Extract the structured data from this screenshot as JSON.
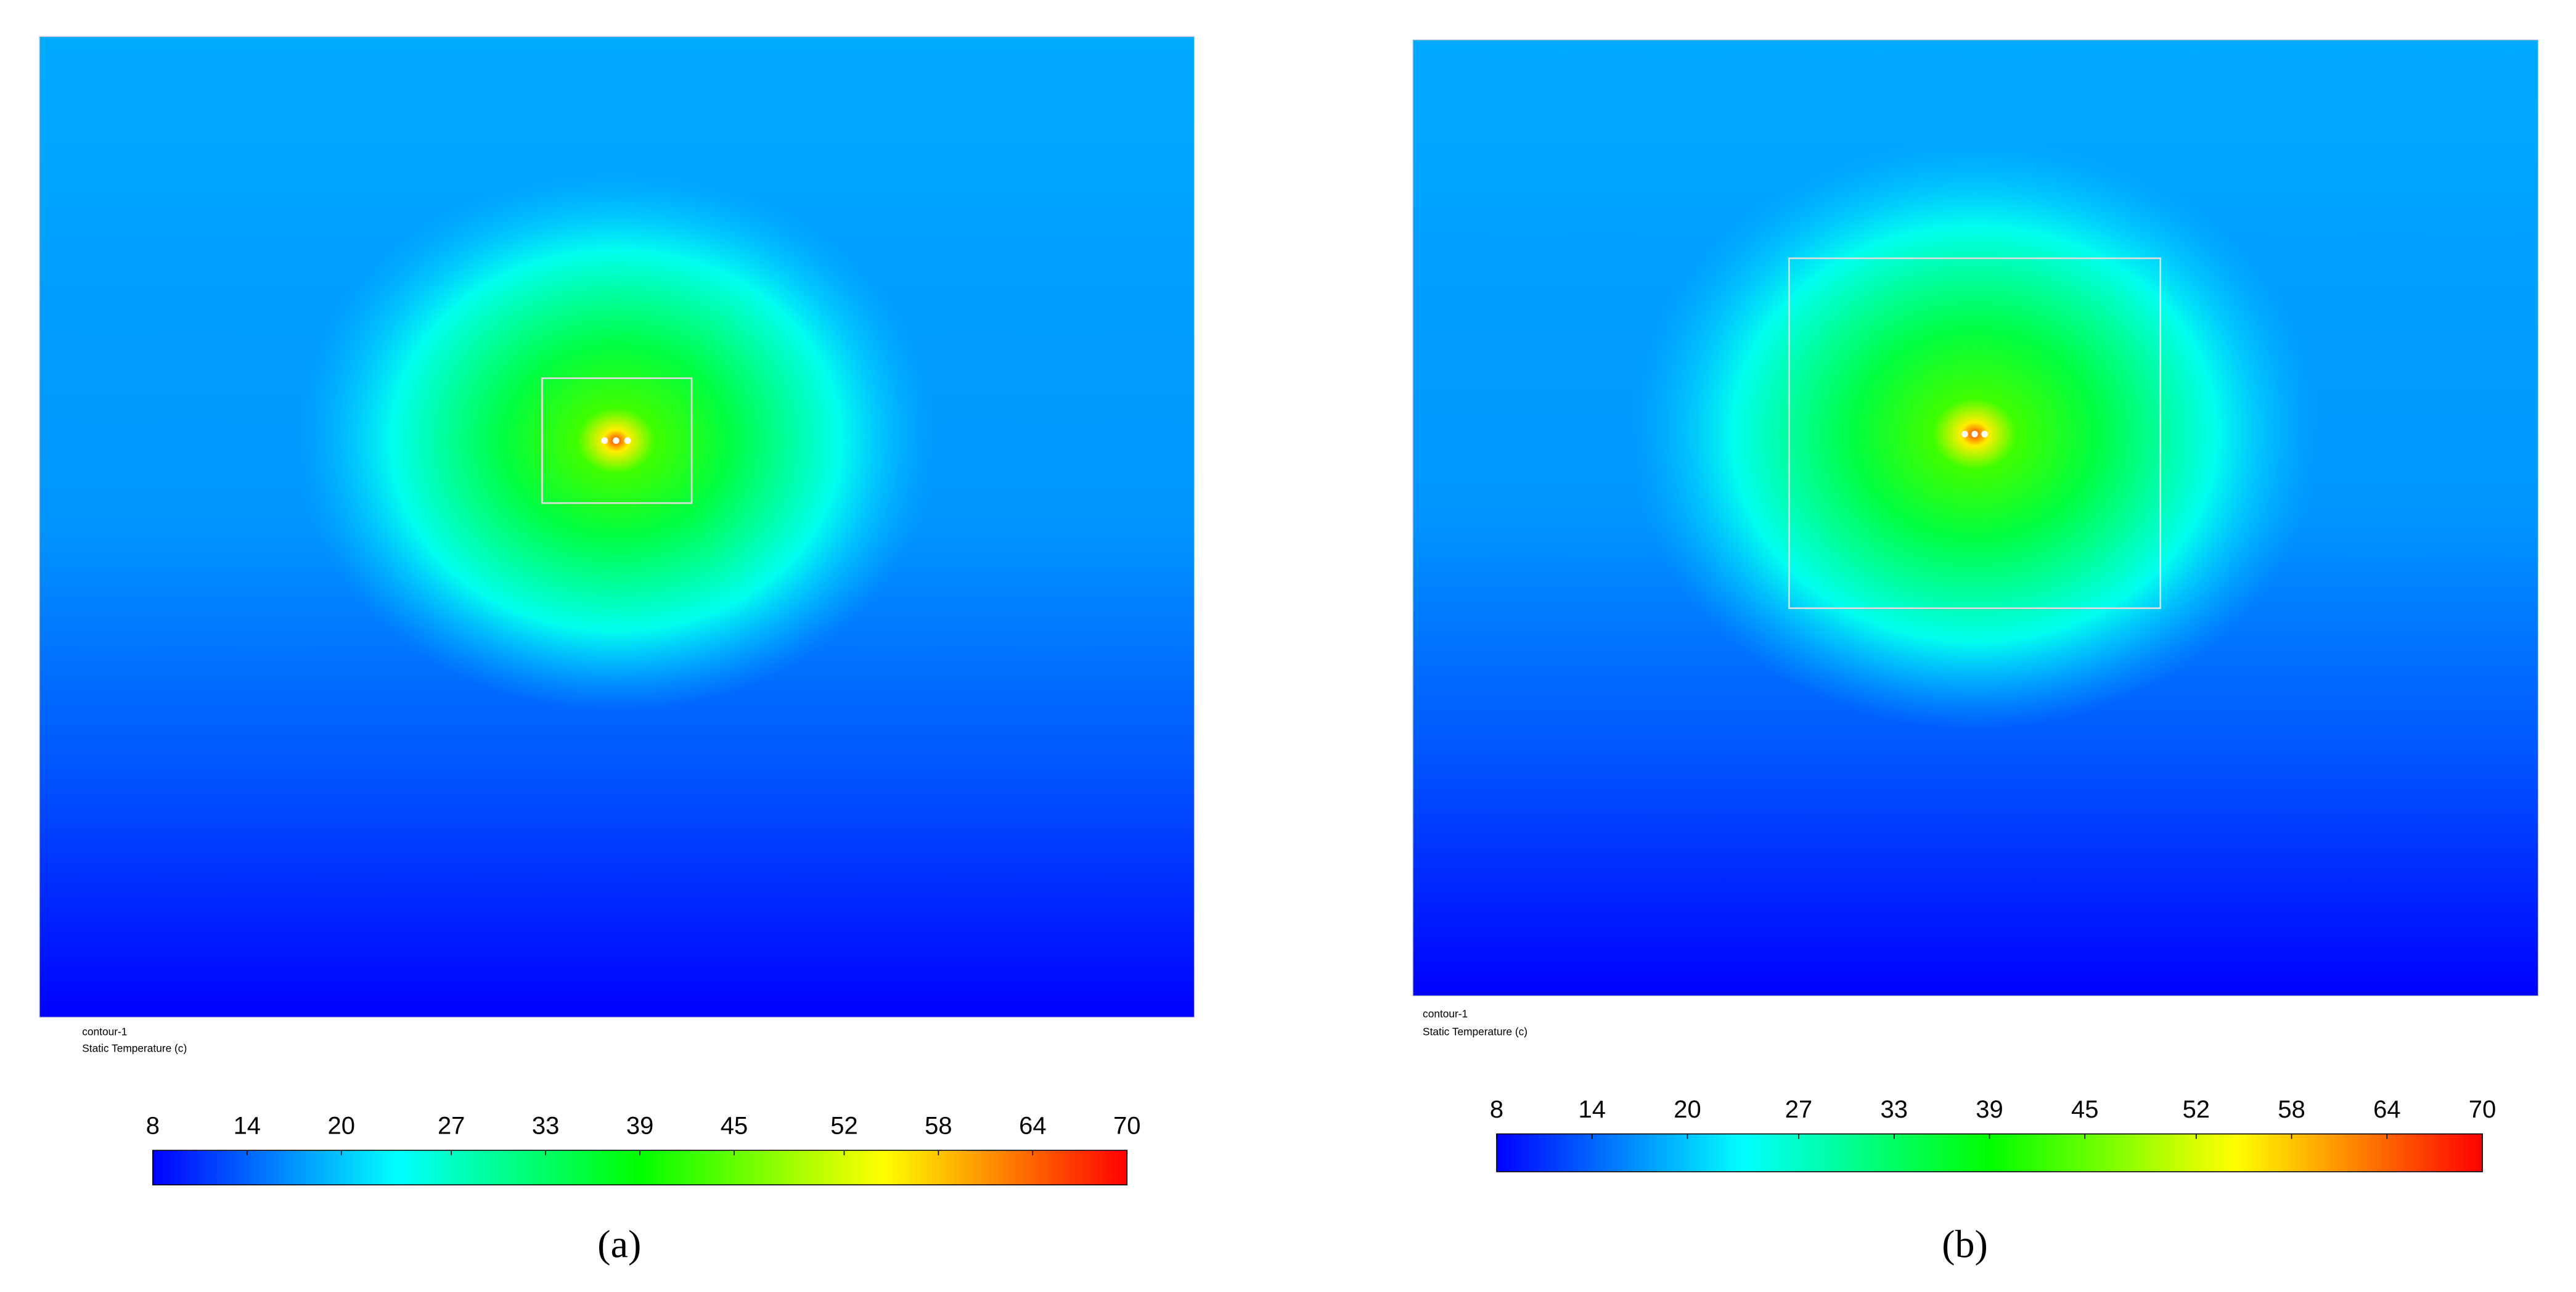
{
  "chart_data": [
    {
      "type": "contour",
      "title": "contour-1",
      "label": "Static Temperature (c)",
      "panel_label": "(a)",
      "clim": [
        8,
        70
      ],
      "cticks": [
        8,
        14,
        20,
        27,
        33,
        39,
        45,
        52,
        58,
        64,
        70
      ],
      "colormap": [
        "#0000ff",
        "#0080ff",
        "#00ffff",
        "#00ff80",
        "#00ff00",
        "#80ff00",
        "#ffff00",
        "#ff8000",
        "#ff0000"
      ]
    },
    {
      "type": "contour",
      "title": "contour-1",
      "label": "Static Temperature (c)",
      "panel_label": "(b)",
      "clim": [
        8,
        70
      ],
      "cticks": [
        8,
        14,
        20,
        27,
        33,
        39,
        45,
        52,
        58,
        64,
        70
      ],
      "colormap": [
        "#0000ff",
        "#0080ff",
        "#00ffff",
        "#00ff80",
        "#00ff00",
        "#80ff00",
        "#ffff00",
        "#ff8000",
        "#ff0000"
      ]
    }
  ]
}
